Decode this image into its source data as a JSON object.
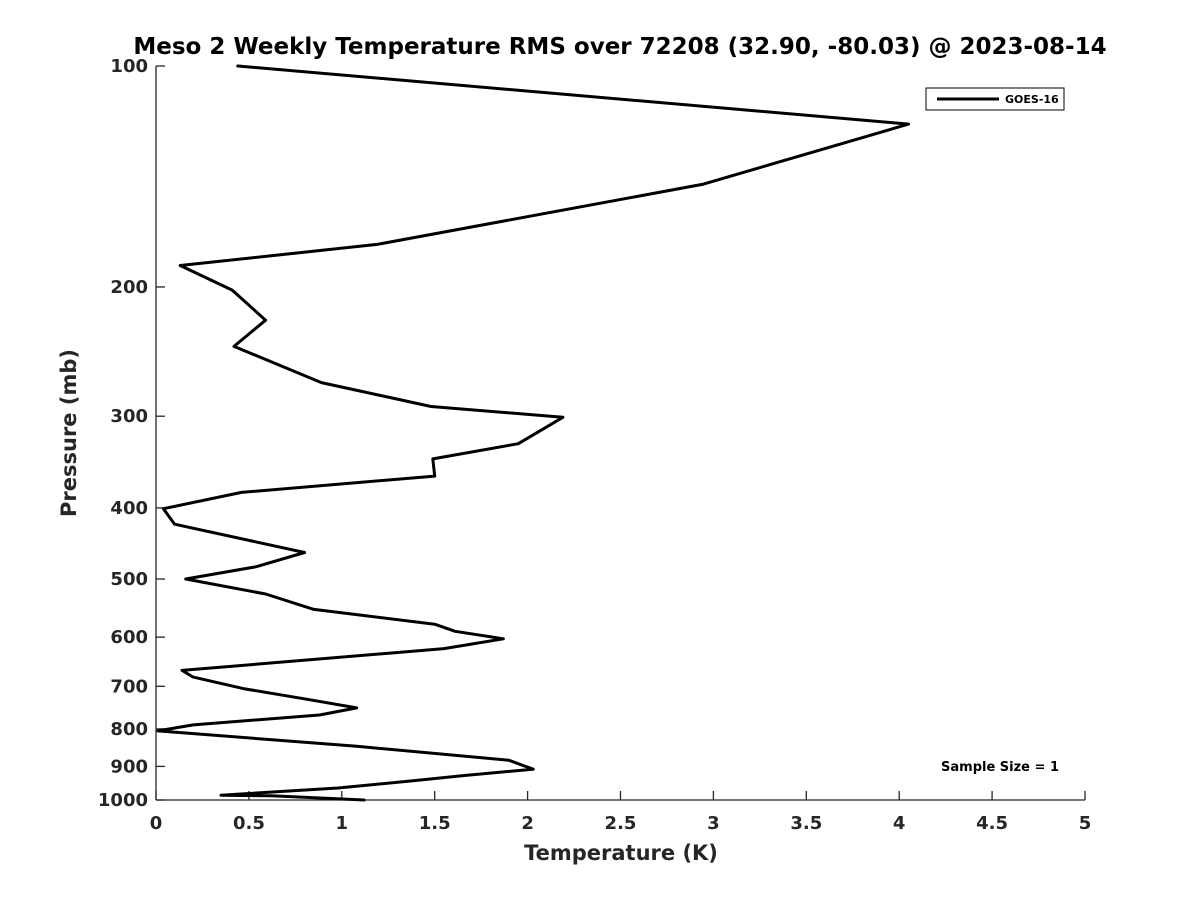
{
  "chart_data": {
    "type": "line",
    "title": "Meso 2 Weekly Temperature RMS over 72208 (32.90, -80.03) @ 2023-08-14",
    "xlabel": "Temperature (K)",
    "ylabel": "Pressure (mb)",
    "xlim": [
      0,
      5
    ],
    "ylim": [
      100,
      1000
    ],
    "y_scale": "log",
    "y_reversed": true,
    "grid": false,
    "legend_position": "top-right",
    "xticks": [
      0,
      0.5,
      1,
      1.5,
      2,
      2.5,
      3,
      3.5,
      4,
      4.5,
      5
    ],
    "xtick_labels": [
      "0",
      "0.5",
      "1",
      "1.5",
      "2",
      "2.5",
      "3",
      "3.5",
      "4",
      "4.5",
      "5"
    ],
    "yticks": [
      100,
      200,
      300,
      400,
      500,
      600,
      700,
      800,
      900,
      1000
    ],
    "ytick_labels": [
      "100",
      "200",
      "300",
      "400",
      "500",
      "600",
      "700",
      "800",
      "900",
      "1000"
    ],
    "annotation": "Sample Size = 1",
    "series": [
      {
        "name": "GOES-16",
        "color": "#000000",
        "points": [
          [
            0.44,
            100
          ],
          [
            4.05,
            120
          ],
          [
            2.94,
            145
          ],
          [
            1.19,
            175
          ],
          [
            0.13,
            187
          ],
          [
            0.41,
            202
          ],
          [
            0.59,
            222
          ],
          [
            0.42,
            241
          ],
          [
            0.89,
            270
          ],
          [
            1.48,
            291
          ],
          [
            2.19,
            301
          ],
          [
            1.95,
            327
          ],
          [
            1.49,
            343
          ],
          [
            1.5,
            362
          ],
          [
            0.46,
            381
          ],
          [
            0.04,
            401
          ],
          [
            0.1,
            421
          ],
          [
            0.8,
            460
          ],
          [
            0.54,
            481
          ],
          [
            0.16,
            500
          ],
          [
            0.59,
            524
          ],
          [
            0.85,
            550
          ],
          [
            1.5,
            576
          ],
          [
            1.61,
            589
          ],
          [
            1.87,
            603
          ],
          [
            1.55,
            622
          ],
          [
            0.14,
            666
          ],
          [
            0.2,
            680
          ],
          [
            0.47,
            705
          ],
          [
            0.81,
            729
          ],
          [
            1.08,
            749
          ],
          [
            0.88,
            766
          ],
          [
            0.2,
            790
          ],
          [
            0.01,
            805
          ],
          [
            1.08,
            845
          ],
          [
            1.9,
            883
          ],
          [
            2.03,
            908
          ],
          [
            1.66,
            926
          ],
          [
            1.41,
            940
          ],
          [
            0.98,
            963
          ],
          [
            0.35,
            985
          ],
          [
            0.62,
            987
          ],
          [
            1.12,
            1000
          ]
        ]
      }
    ]
  }
}
